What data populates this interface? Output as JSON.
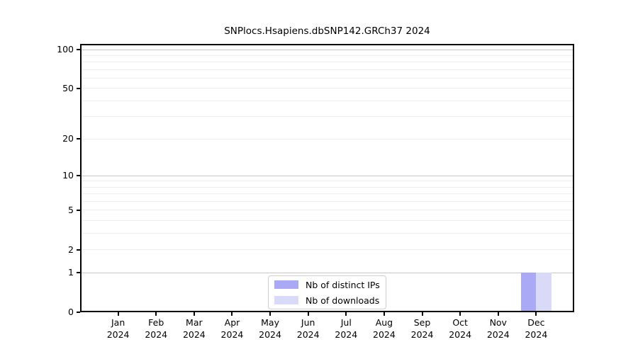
{
  "title": "SNPlocs.Hsapiens.dbSNP142.GRCh37 2024",
  "chart_data": {
    "type": "bar",
    "title": "SNPlocs.Hsapiens.dbSNP142.GRCh37 2024",
    "categories": [
      "Jan",
      "Feb",
      "Mar",
      "Apr",
      "May",
      "Jun",
      "Jul",
      "Aug",
      "Sep",
      "Oct",
      "Nov",
      "Dec"
    ],
    "category_year": "2024",
    "series": [
      {
        "name": "Nb of distinct IPs",
        "color": "#a9a9f6",
        "values": [
          0,
          0,
          0,
          0,
          0,
          0,
          0,
          0,
          0,
          0,
          0,
          1
        ]
      },
      {
        "name": "Nb of downloads",
        "color": "#d9d9f8",
        "values": [
          0,
          0,
          0,
          0,
          0,
          0,
          0,
          0,
          0,
          0,
          0,
          1
        ]
      }
    ],
    "xlabel": "",
    "ylabel": "",
    "y_scale": "log1p",
    "ylim": [
      0,
      100
    ],
    "y_tick_labels": [
      "0",
      "1",
      "2",
      "5",
      "10",
      "20",
      "50",
      "100"
    ],
    "y_tick_values": [
      0,
      1,
      2,
      5,
      10,
      20,
      50,
      100
    ],
    "y_major_gridlines": [
      1,
      10,
      100
    ],
    "y_minor_gridlines": [
      2,
      3,
      4,
      5,
      6,
      7,
      8,
      9,
      20,
      30,
      40,
      50,
      60,
      70,
      80,
      90
    ],
    "grid": "horizontal",
    "legend_position": "lower center"
  },
  "colors": {
    "axis": "#000000",
    "major_grid": "#c6c6c6",
    "minor_grid": "#ededed",
    "background": "#ffffff"
  }
}
